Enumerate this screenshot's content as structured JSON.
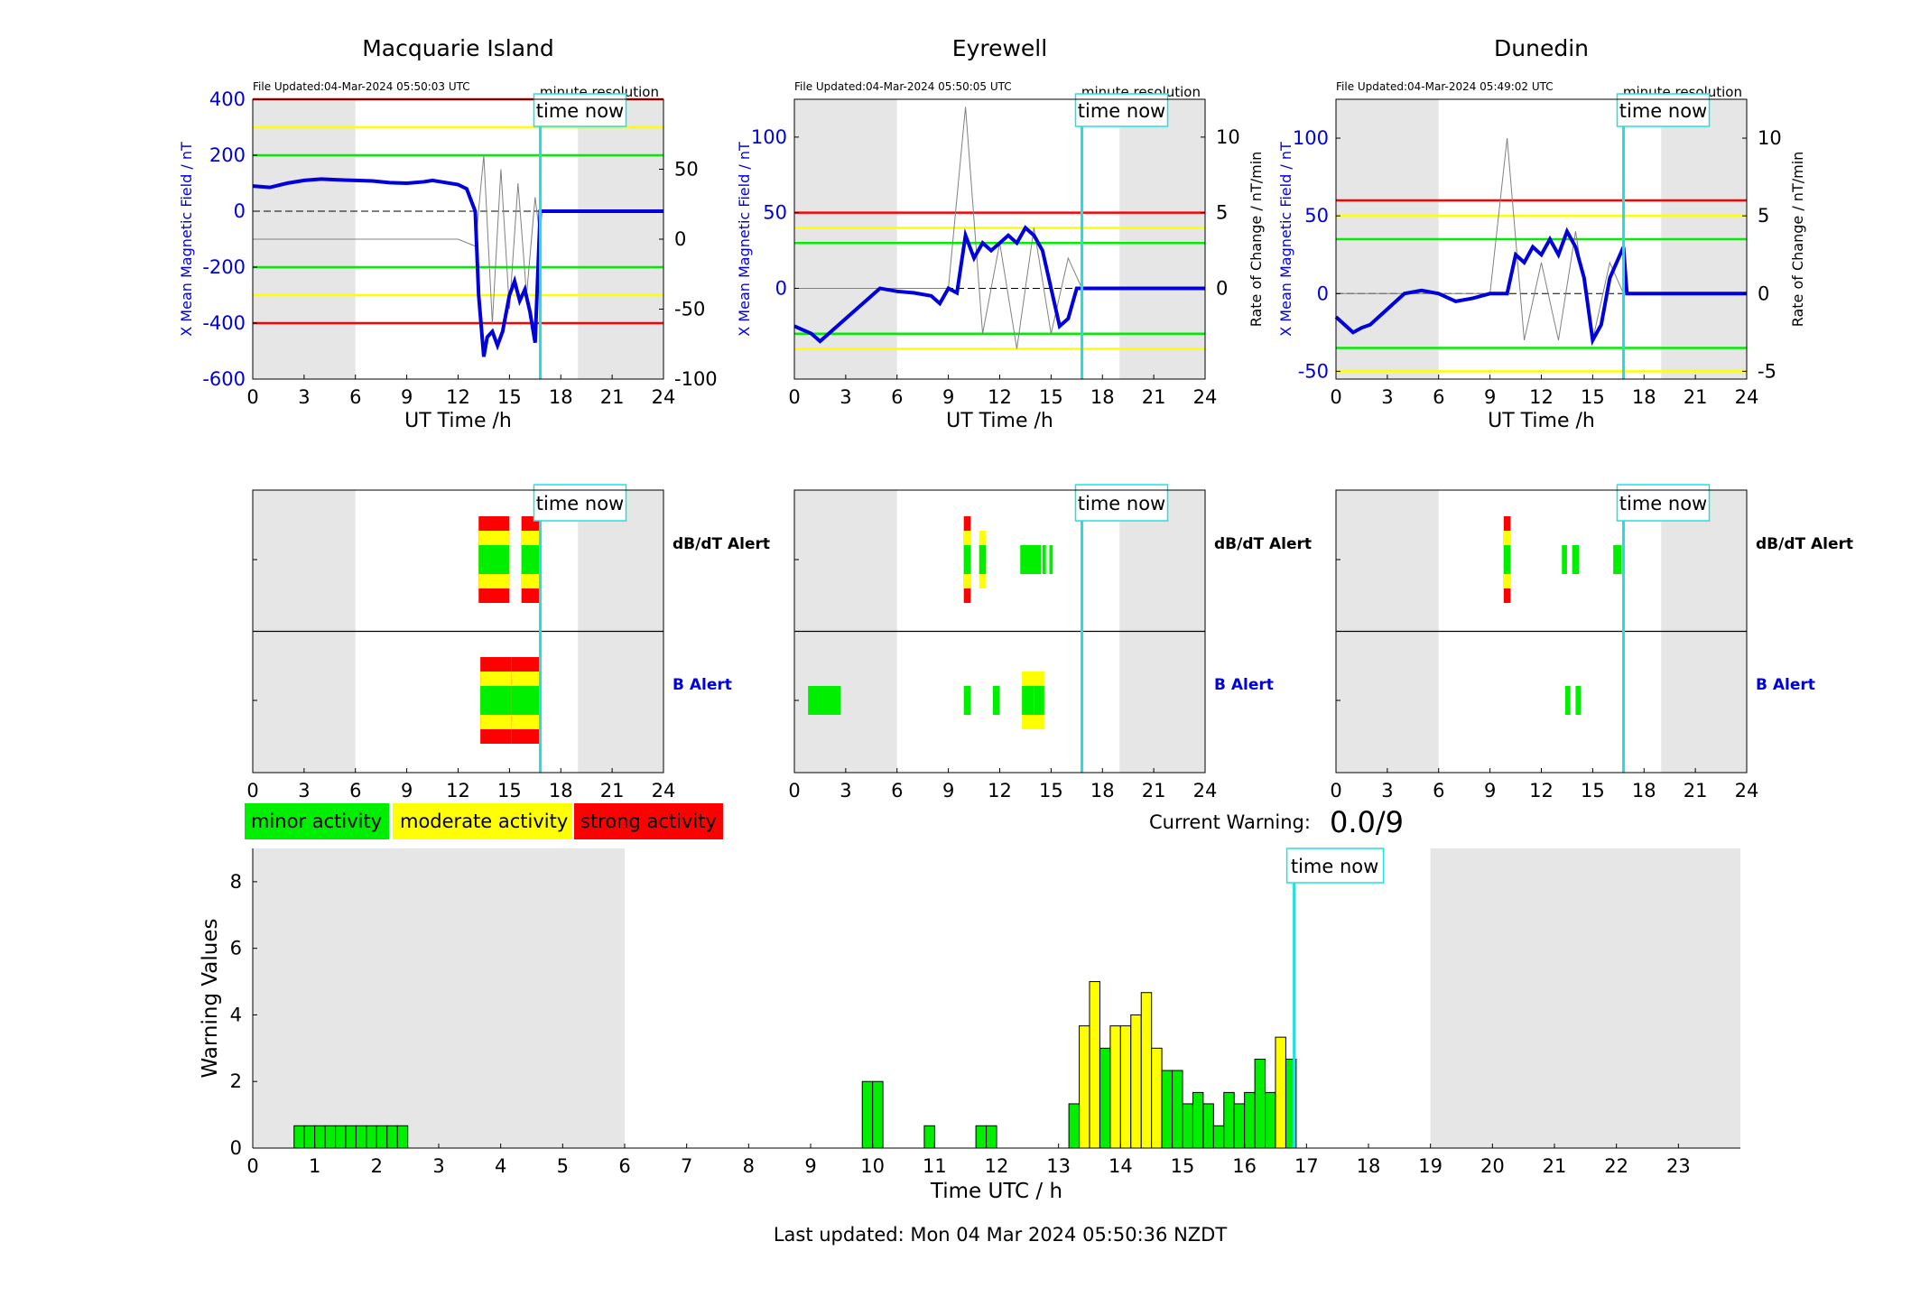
{
  "legend": {
    "minor": {
      "label": "minor activity",
      "color": "#00ee00"
    },
    "moderate": {
      "label": "moderate activity",
      "color": "#ffff00"
    },
    "strong": {
      "label": "strong activity",
      "color": "#ff0000"
    }
  },
  "current_warning": {
    "label": "Current Warning:",
    "value": "0.0/9"
  },
  "last_updated": "Last updated: Mon 04 Mar 2024 05:50:36 NZDT",
  "time_now_label": "time now",
  "alert_labels": {
    "dbdt": "dB/dT Alert",
    "b": "B Alert"
  },
  "colors": {
    "field": "#0000dd",
    "rate": "#808080",
    "time_now": "#22e0e0",
    "night": "#e6e6e6",
    "red": "#ff0000",
    "yellow": "#ffff00",
    "green": "#00ee00"
  },
  "chart_data": [
    {
      "type": "line",
      "title": "Macquarie Island",
      "file_updated": "File Updated:04-Mar-2024 05:50:03 UTC",
      "resolution": "minute resolution",
      "xlabel": "UT Time /h",
      "ylabel": "X Mean Magnetic Field / nT",
      "y2label": "",
      "xlim": [
        0,
        24
      ],
      "xticks": [
        0,
        3,
        6,
        9,
        12,
        15,
        18,
        21,
        24
      ],
      "ylim": [
        -600,
        400
      ],
      "yticks": [
        -600,
        -400,
        -200,
        0,
        200,
        400
      ],
      "y2lim": [
        -100,
        100
      ],
      "y2ticks": [
        -100,
        -50,
        0,
        50
      ],
      "night": [
        [
          0,
          6
        ],
        [
          19,
          24
        ]
      ],
      "time_now": 16.8,
      "thresholds": [
        {
          "value": 400,
          "color": "red"
        },
        {
          "value": 300,
          "color": "yellow"
        },
        {
          "value": 200,
          "color": "green"
        },
        {
          "value": -200,
          "color": "green"
        },
        {
          "value": -300,
          "color": "yellow"
        },
        {
          "value": -400,
          "color": "red"
        }
      ],
      "field_series": {
        "x": [
          0,
          1,
          2,
          3,
          4,
          5,
          6,
          7,
          8,
          9,
          10,
          10.5,
          11,
          12,
          12.5,
          13,
          13.2,
          13.5,
          13.7,
          14,
          14.3,
          14.6,
          15,
          15.3,
          15.6,
          15.9,
          16.2,
          16.5,
          16.8,
          17,
          24
        ],
        "y": [
          90,
          85,
          100,
          110,
          115,
          112,
          110,
          108,
          102,
          100,
          105,
          110,
          105,
          95,
          80,
          0,
          -300,
          -520,
          -450,
          -430,
          -480,
          -430,
          -300,
          -250,
          -320,
          -280,
          -360,
          -470,
          0,
          0,
          0
        ]
      },
      "rate_series": {
        "x": [
          0,
          6,
          10,
          12,
          13,
          13.5,
          14,
          14.5,
          15,
          15.5,
          16,
          16.5,
          16.8
        ],
        "y": [
          0,
          0,
          0,
          0,
          -5,
          60,
          -60,
          50,
          -50,
          40,
          -40,
          30,
          0
        ]
      },
      "alerts": {
        "dbdt": [
          {
            "start": 13.2,
            "end": 15.0,
            "level": "strong"
          },
          {
            "start": 15.7,
            "end": 16.8,
            "level": "strong"
          }
        ],
        "b": [
          {
            "start": 13.3,
            "end": 15.1,
            "level": "strong"
          },
          {
            "start": 15.1,
            "end": 16.8,
            "level": "strong"
          }
        ]
      }
    },
    {
      "type": "line",
      "title": "Eyrewell",
      "file_updated": "File Updated:04-Mar-2024 05:50:05 UTC",
      "resolution": "minute resolution",
      "xlabel": "UT Time /h",
      "ylabel": "X Mean Magnetic Field / nT",
      "y2label": "Rate of Change / nT/min",
      "xlim": [
        0,
        24
      ],
      "xticks": [
        0,
        3,
        6,
        9,
        12,
        15,
        18,
        21,
        24
      ],
      "ylim": [
        -60,
        125
      ],
      "yticks": [
        0,
        50,
        100
      ],
      "y2lim": [
        -6,
        12.5
      ],
      "y2ticks": [
        0,
        5,
        10
      ],
      "night": [
        [
          0,
          6
        ],
        [
          19,
          24
        ]
      ],
      "time_now": 16.8,
      "thresholds": [
        {
          "value": 50,
          "color": "red"
        },
        {
          "value": 40,
          "color": "yellow"
        },
        {
          "value": 30,
          "color": "green"
        },
        {
          "value": -30,
          "color": "green"
        },
        {
          "value": -40,
          "color": "yellow"
        }
      ],
      "field_series": {
        "x": [
          0,
          1,
          1.5,
          2,
          3,
          4,
          5,
          6,
          7,
          8,
          8.5,
          9,
          9.5,
          10,
          10.5,
          11,
          11.5,
          12,
          12.5,
          13,
          13.5,
          14,
          14.5,
          15,
          15.5,
          16,
          16.5,
          17,
          24
        ],
        "y": [
          -25,
          -30,
          -35,
          -30,
          -20,
          -10,
          0,
          -2,
          -3,
          -5,
          -10,
          0,
          -3,
          35,
          20,
          30,
          25,
          30,
          35,
          30,
          40,
          35,
          25,
          0,
          -25,
          -20,
          0,
          0,
          0
        ]
      },
      "rate_series": {
        "x": [
          0,
          6,
          9,
          10,
          11,
          12,
          13,
          14,
          15,
          16,
          16.8
        ],
        "y": [
          0,
          0,
          0,
          12,
          -3,
          3,
          -4,
          4,
          -3,
          2,
          0
        ]
      },
      "alerts": {
        "dbdt": [
          {
            "start": 9.9,
            "end": 10.3,
            "level": "strong"
          },
          {
            "start": 10.8,
            "end": 11.2,
            "level": "moderate"
          },
          {
            "start": 13.2,
            "end": 14.4,
            "level": "minor"
          },
          {
            "start": 14.5,
            "end": 14.7,
            "level": "minor"
          },
          {
            "start": 14.9,
            "end": 15.1,
            "level": "minor"
          }
        ],
        "b": [
          {
            "start": 0.8,
            "end": 2.7,
            "level": "minor"
          },
          {
            "start": 9.9,
            "end": 10.3,
            "level": "minor"
          },
          {
            "start": 11.6,
            "end": 12.0,
            "level": "minor"
          },
          {
            "start": 13.3,
            "end": 14.0,
            "level": "moderate"
          },
          {
            "start": 14.0,
            "end": 14.6,
            "level": "moderate"
          }
        ]
      }
    },
    {
      "type": "line",
      "title": "Dunedin",
      "file_updated": "File Updated:04-Mar-2024 05:49:02 UTC",
      "resolution": "minute resolution",
      "xlabel": "UT Time /h",
      "ylabel": "X Mean Magnetic Field / nT",
      "y2label": "Rate of Change / nT/min",
      "xlim": [
        0,
        24
      ],
      "xticks": [
        0,
        3,
        6,
        9,
        12,
        15,
        18,
        21,
        24
      ],
      "ylim": [
        -55,
        125
      ],
      "yticks": [
        -50,
        0,
        50,
        100
      ],
      "y2lim": [
        -5.5,
        12.5
      ],
      "y2ticks": [
        -5,
        0,
        5,
        10
      ],
      "night": [
        [
          0,
          6
        ],
        [
          19,
          24
        ]
      ],
      "time_now": 16.8,
      "thresholds": [
        {
          "value": 60,
          "color": "red"
        },
        {
          "value": 50,
          "color": "yellow"
        },
        {
          "value": 35,
          "color": "green"
        },
        {
          "value": -35,
          "color": "green"
        },
        {
          "value": -50,
          "color": "yellow"
        }
      ],
      "field_series": {
        "x": [
          0,
          0.5,
          1,
          1.5,
          2,
          2.5,
          3,
          4,
          5,
          6,
          7,
          8,
          9,
          10,
          10.5,
          11,
          11.5,
          12,
          12.5,
          13,
          13.5,
          14,
          14.5,
          15,
          15.5,
          16,
          16.8,
          17,
          24
        ],
        "y": [
          -15,
          -20,
          -25,
          -22,
          -20,
          -15,
          -10,
          0,
          2,
          0,
          -5,
          -3,
          0,
          0,
          25,
          20,
          30,
          25,
          35,
          25,
          40,
          30,
          10,
          -30,
          -20,
          10,
          30,
          0,
          0
        ]
      },
      "rate_series": {
        "x": [
          0,
          6,
          9,
          10,
          11,
          12,
          13,
          14,
          15,
          16,
          16.8
        ],
        "y": [
          0,
          0,
          0,
          10,
          -3,
          2,
          -3,
          4,
          -3,
          2,
          0
        ]
      },
      "alerts": {
        "dbdt": [
          {
            "start": 9.8,
            "end": 10.2,
            "level": "strong"
          },
          {
            "start": 13.2,
            "end": 13.5,
            "level": "minor"
          },
          {
            "start": 13.8,
            "end": 14.2,
            "level": "minor"
          },
          {
            "start": 16.2,
            "end": 16.7,
            "level": "minor"
          }
        ],
        "b": [
          {
            "start": 13.4,
            "end": 13.7,
            "level": "minor"
          },
          {
            "start": 14.0,
            "end": 14.3,
            "level": "minor"
          }
        ]
      }
    },
    {
      "type": "bar",
      "xlabel": "Time UTC / h",
      "ylabel": "Warning Values",
      "xlim": [
        0,
        24
      ],
      "xticks": [
        0,
        1,
        2,
        3,
        4,
        5,
        6,
        7,
        8,
        9,
        10,
        11,
        12,
        13,
        14,
        15,
        16,
        17,
        18,
        19,
        20,
        21,
        22,
        23
      ],
      "ylim": [
        0,
        9
      ],
      "yticks": [
        0,
        2,
        4,
        6,
        8
      ],
      "night": [
        [
          0,
          6
        ],
        [
          19,
          24
        ]
      ],
      "time_now": 16.8,
      "bar_width": 0.1667,
      "x": [
        0.75,
        0.917,
        1.083,
        1.25,
        1.417,
        1.583,
        1.75,
        1.917,
        2.083,
        2.25,
        2.417,
        9.917,
        10.083,
        10.917,
        11.75,
        11.917,
        13.25,
        13.417,
        13.583,
        13.75,
        13.917,
        14.083,
        14.25,
        14.417,
        14.583,
        14.75,
        14.917,
        15.083,
        15.25,
        15.417,
        15.583,
        15.75,
        15.917,
        16.083,
        16.25,
        16.417,
        16.583,
        16.75
      ],
      "values": [
        0.67,
        0.67,
        0.67,
        0.67,
        0.67,
        0.67,
        0.67,
        0.67,
        0.67,
        0.67,
        0.67,
        2.0,
        2.0,
        0.67,
        0.67,
        0.67,
        1.33,
        3.67,
        5.0,
        3.0,
        3.67,
        3.67,
        4.0,
        4.67,
        3.0,
        2.33,
        2.33,
        1.33,
        1.67,
        1.33,
        0.67,
        1.67,
        1.33,
        1.67,
        2.67,
        1.67,
        3.33,
        2.67
      ],
      "levels": [
        "minor",
        "minor",
        "minor",
        "minor",
        "minor",
        "minor",
        "minor",
        "minor",
        "minor",
        "minor",
        "minor",
        "minor",
        "minor",
        "minor",
        "minor",
        "minor",
        "minor",
        "moderate",
        "moderate",
        "minor",
        "moderate",
        "moderate",
        "moderate",
        "moderate",
        "moderate",
        "minor",
        "minor",
        "minor",
        "minor",
        "minor",
        "minor",
        "minor",
        "minor",
        "minor",
        "minor",
        "minor",
        "moderate",
        "minor"
      ]
    }
  ]
}
